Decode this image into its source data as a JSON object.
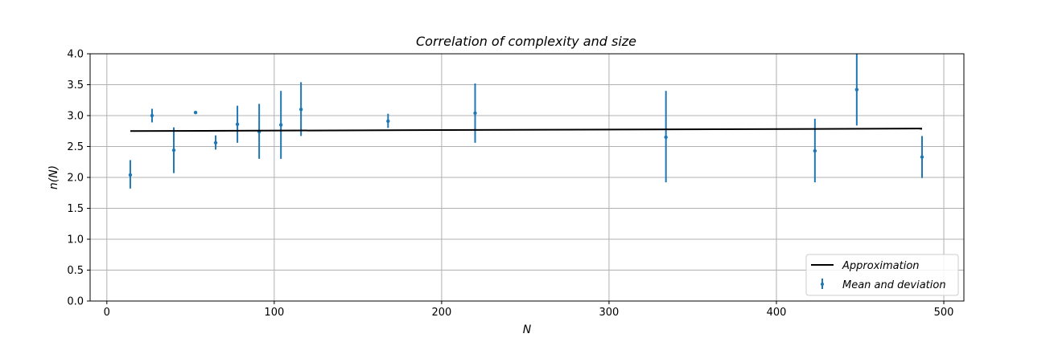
{
  "chart_data": {
    "type": "scatter",
    "title": "Correlation of complexity and size",
    "xlabel": "N",
    "ylabel": "n(N)",
    "xlim": [
      -10,
      512
    ],
    "ylim": [
      0.0,
      4.0
    ],
    "xticks": [
      0,
      100,
      200,
      300,
      400,
      500
    ],
    "yticks": [
      0.0,
      0.5,
      1.0,
      1.5,
      2.0,
      2.5,
      3.0,
      3.5,
      4.0
    ],
    "xtick_labels": [
      "0",
      "100",
      "200",
      "300",
      "400",
      "500"
    ],
    "ytick_labels": [
      "0.0",
      "0.5",
      "1.0",
      "1.5",
      "2.0",
      "2.5",
      "3.0",
      "3.5",
      "4.0"
    ],
    "grid": true,
    "legend_position": "lower-right",
    "colors": {
      "points": "#1f77b4",
      "line": "#000000",
      "grid": "#b0b0b0"
    },
    "series": [
      {
        "name": "Mean and deviation",
        "kind": "errorbar",
        "x": [
          14,
          27,
          40,
          53,
          65,
          78,
          91,
          104,
          116,
          168,
          220,
          334,
          423,
          448,
          487
        ],
        "y": [
          2.04,
          3.0,
          2.44,
          3.05,
          2.56,
          2.86,
          2.74,
          2.85,
          3.1,
          2.91,
          3.04,
          2.65,
          2.43,
          3.42,
          2.33
        ],
        "ylow": [
          1.82,
          2.89,
          2.07,
          3.04,
          2.45,
          2.56,
          2.3,
          2.3,
          2.67,
          2.8,
          2.56,
          1.92,
          1.92,
          2.84,
          1.99
        ],
        "yhigh": [
          2.28,
          3.11,
          2.81,
          3.06,
          2.68,
          3.16,
          3.19,
          3.4,
          3.54,
          3.03,
          3.52,
          3.4,
          2.95,
          4.02,
          2.67
        ]
      },
      {
        "name": "Approximation",
        "kind": "line",
        "x": [
          14,
          487
        ],
        "y": [
          2.75,
          2.79
        ]
      }
    ]
  }
}
